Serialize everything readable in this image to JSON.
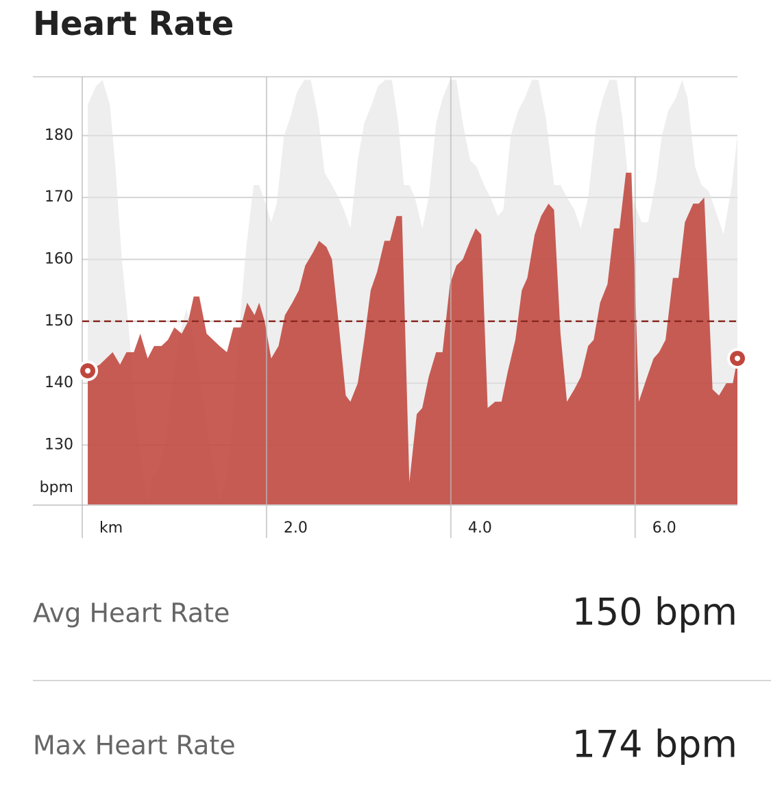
{
  "title": "Heart Rate",
  "chart_data": {
    "type": "area",
    "y_label": "bpm",
    "xlim": [
      0,
      7.11
    ],
    "xticks": [
      {
        "value": 0,
        "label": "km"
      },
      {
        "value": 2,
        "label": "2.0"
      },
      {
        "value": 4,
        "label": "4.0"
      },
      {
        "value": 6,
        "label": "6.0"
      }
    ],
    "ylim": [
      120.3,
      189.5
    ],
    "yticks": [
      130,
      140,
      150,
      160,
      170,
      180
    ],
    "grid": true,
    "reference_line": 150,
    "reference_color": "#8b2a22",
    "series": [
      {
        "color": "#e3e3e3",
        "x": [
          0.06,
          0.15,
          0.22,
          0.3,
          0.36,
          0.43,
          0.51,
          0.58,
          0.65,
          0.71,
          0.76,
          0.83,
          0.91,
          0.98,
          1.06,
          1.13,
          1.2,
          1.28,
          1.35,
          1.43,
          1.49,
          1.56,
          1.64,
          1.71,
          1.78,
          1.86,
          1.92,
          1.99,
          2.05,
          2.11,
          2.19,
          2.26,
          2.33,
          2.41,
          2.48,
          2.56,
          2.63,
          2.71,
          2.78,
          2.84,
          2.91,
          2.99,
          3.06,
          3.14,
          3.21,
          3.29,
          3.36,
          3.43,
          3.49,
          3.55,
          3.61,
          3.69,
          3.76,
          3.84,
          3.91,
          3.99,
          4.06,
          4.13,
          4.21,
          4.28,
          4.36,
          4.43,
          4.51,
          4.57,
          4.65,
          4.73,
          4.8,
          4.88,
          4.95,
          5.03,
          5.12,
          5.19,
          5.26,
          5.34,
          5.41,
          5.49,
          5.58,
          5.65,
          5.72,
          5.8,
          5.86,
          5.93,
          5.99,
          6.07,
          6.14,
          6.23,
          6.29,
          6.36,
          6.44,
          6.51,
          6.57,
          6.65,
          6.72,
          6.8,
          6.87,
          6.96,
          7.05,
          7.11
        ],
        "values": [
          185,
          188,
          189,
          185,
          175,
          160,
          148,
          135,
          126,
          121,
          125,
          126,
          131,
          140,
          148,
          152,
          148,
          141,
          133,
          126,
          121,
          124,
          135,
          150,
          162,
          172,
          172,
          169,
          166,
          169,
          180,
          183,
          187,
          189,
          189,
          183,
          174,
          172,
          170,
          168,
          165,
          176,
          182,
          185,
          188,
          189,
          189,
          182,
          172,
          172,
          170,
          165,
          170,
          182,
          186,
          189,
          189,
          182,
          176,
          175,
          172,
          170,
          167,
          168,
          180,
          184,
          186,
          189,
          189,
          183,
          172,
          172,
          170,
          168,
          165,
          170,
          182,
          186,
          189,
          189,
          183,
          172,
          169,
          166,
          166,
          173,
          180,
          184,
          186,
          189,
          186,
          175,
          172,
          171,
          168,
          164,
          172,
          180
        ]
      },
      {
        "color": "#c0473d",
        "x": [
          0.06,
          0.19,
          0.33,
          0.41,
          0.48,
          0.56,
          0.63,
          0.71,
          0.78,
          0.86,
          0.93,
          1.0,
          1.08,
          1.15,
          1.21,
          1.27,
          1.35,
          1.42,
          1.49,
          1.57,
          1.64,
          1.72,
          1.79,
          1.87,
          1.92,
          1.98,
          2.05,
          2.13,
          2.2,
          2.28,
          2.35,
          2.42,
          2.5,
          2.57,
          2.65,
          2.71,
          2.78,
          2.86,
          2.91,
          2.99,
          3.06,
          3.13,
          3.2,
          3.28,
          3.34,
          3.41,
          3.47,
          3.55,
          3.63,
          3.69,
          3.76,
          3.84,
          3.91,
          3.99,
          4.06,
          4.13,
          4.21,
          4.27,
          4.33,
          4.4,
          4.48,
          4.55,
          4.62,
          4.7,
          4.77,
          4.83,
          4.91,
          4.98,
          5.06,
          5.12,
          5.19,
          5.26,
          5.34,
          5.41,
          5.49,
          5.55,
          5.62,
          5.7,
          5.77,
          5.83,
          5.9,
          5.96,
          6.04,
          6.13,
          6.2,
          6.26,
          6.33,
          6.41,
          6.47,
          6.54,
          6.63,
          6.69,
          6.75,
          6.84,
          6.91,
          6.99,
          7.06,
          7.11
        ],
        "values": [
          142,
          143,
          145,
          143,
          145,
          145,
          148,
          144,
          146,
          146,
          147,
          149,
          148,
          150,
          154,
          154,
          148,
          147,
          146,
          145,
          149,
          149,
          153,
          151,
          153,
          150,
          144,
          146,
          151,
          153,
          155,
          159,
          161,
          163,
          162,
          160,
          150,
          138,
          137,
          140,
          147,
          155,
          158,
          163,
          163,
          167,
          167,
          124,
          135,
          136,
          141,
          145,
          145,
          156,
          159,
          160,
          163,
          165,
          164,
          136,
          137,
          137,
          142,
          147,
          155,
          157,
          164,
          167,
          169,
          168,
          148,
          137,
          139,
          141,
          146,
          147,
          153,
          156,
          165,
          165,
          174,
          174,
          137,
          141,
          144,
          145,
          147,
          157,
          157,
          166,
          169,
          169,
          170,
          139,
          138,
          140,
          140,
          144
        ]
      }
    ]
  },
  "stats": [
    {
      "label": "Avg Heart Rate",
      "value": "150 bpm"
    },
    {
      "label": "Max Heart Rate",
      "value": "174 bpm"
    }
  ]
}
